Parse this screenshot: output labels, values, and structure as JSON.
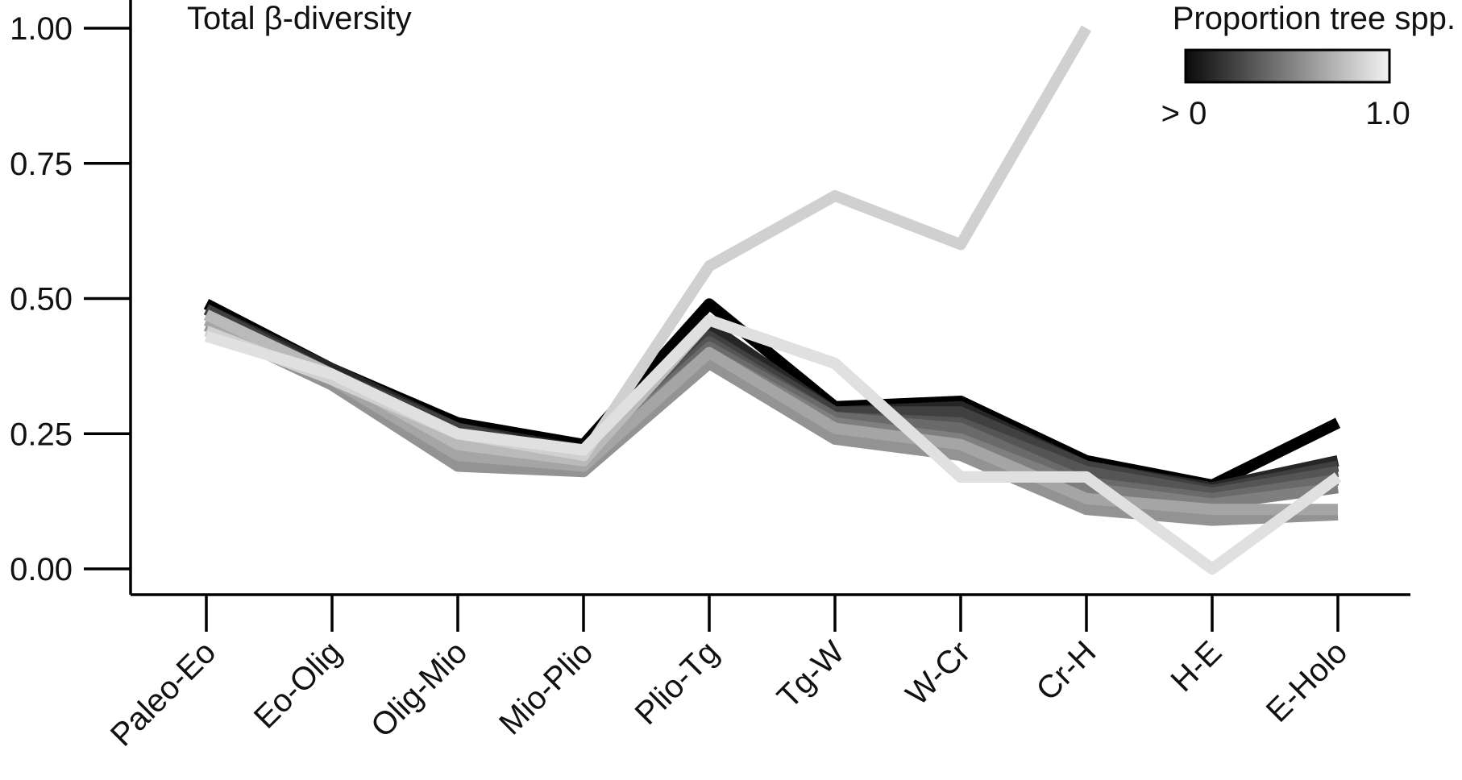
{
  "chart_data": {
    "type": "line",
    "title": "Total β-diversity",
    "xlabel": "",
    "ylabel": "",
    "ylim": [
      0,
      1.0
    ],
    "yticks": [
      0.0,
      0.25,
      0.5,
      0.75,
      1.0
    ],
    "ytick_labels": [
      "0.00",
      "0.25",
      "0.50",
      "0.75",
      "1.00"
    ],
    "categories": [
      "Paleo-Eo",
      "Eo-Olig",
      "Olig-Mio",
      "Mio-Plio",
      "Plio-Tg",
      "Tg-W",
      "W-Cr",
      "Cr-H",
      "H-E",
      "E-Holo"
    ],
    "grid": false,
    "legend": {
      "title": "Proportion tree spp.",
      "low_label": "> 0",
      "high_label": "1.0",
      "gradient_from": "#0a0a0a",
      "gradient_to": "#f2f2f2",
      "placement": "top-right"
    },
    "series": [
      {
        "proportion": 0.05,
        "color": "#000000",
        "values": [
          0.49,
          0.37,
          0.27,
          0.23,
          0.49,
          0.3,
          0.31,
          0.2,
          0.155,
          0.27
        ]
      },
      {
        "proportion": 0.15,
        "color": "#262626",
        "values": [
          0.48,
          0.37,
          0.26,
          0.22,
          0.45,
          0.29,
          0.3,
          0.19,
          0.15,
          0.2
        ]
      },
      {
        "proportion": 0.25,
        "color": "#404040",
        "values": [
          0.48,
          0.36,
          0.26,
          0.21,
          0.43,
          0.29,
          0.29,
          0.19,
          0.145,
          0.19
        ]
      },
      {
        "proportion": 0.35,
        "color": "#555555",
        "values": [
          0.47,
          0.36,
          0.25,
          0.2,
          0.42,
          0.28,
          0.27,
          0.18,
          0.14,
          0.18
        ]
      },
      {
        "proportion": 0.45,
        "color": "#6a6a6a",
        "values": [
          0.46,
          0.36,
          0.24,
          0.2,
          0.41,
          0.28,
          0.26,
          0.16,
          0.13,
          0.165
        ]
      },
      {
        "proportion": 0.55,
        "color": "#7f7f7f",
        "values": [
          0.45,
          0.35,
          0.23,
          0.2,
          0.4,
          0.27,
          0.24,
          0.15,
          0.12,
          0.15
        ]
      },
      {
        "proportion": 0.65,
        "color": "#939393",
        "values": [
          0.45,
          0.34,
          0.19,
          0.18,
          0.38,
          0.24,
          0.21,
          0.11,
          0.09,
          0.1
        ]
      },
      {
        "proportion": 0.75,
        "color": "#a5a5a5",
        "values": [
          0.46,
          0.35,
          0.21,
          0.19,
          0.4,
          0.26,
          0.23,
          0.13,
          0.11,
          0.11
        ]
      },
      {
        "proportion": 0.85,
        "color": "#bababa",
        "values": [
          0.47,
          0.36,
          0.23,
          0.2,
          0.46,
          0.38,
          0.17,
          0.17,
          0.0,
          0.17
        ]
      },
      {
        "proportion": 0.92,
        "color": "#d0d0d0",
        "values": [
          0.44,
          0.35,
          0.25,
          0.21,
          0.56,
          0.69,
          0.6,
          1.0,
          null,
          null
        ]
      },
      {
        "proportion": 0.98,
        "color": "#e0e0e0",
        "values": [
          0.43,
          0.36,
          0.25,
          0.22,
          0.46,
          0.38,
          0.17,
          0.17,
          0.0,
          0.17
        ]
      }
    ]
  }
}
